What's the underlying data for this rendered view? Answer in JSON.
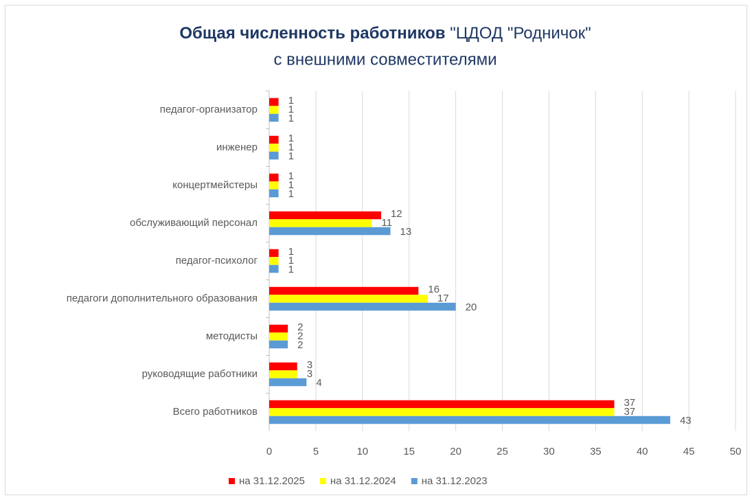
{
  "chart_data": {
    "type": "bar",
    "orientation": "horizontal",
    "title": [
      "Общая численность работников",
      "\"ЦДОД \"Родничок\"",
      "с внешними совместителями"
    ],
    "categories": [
      "педагог-организатор",
      "инженер",
      "концертмейстеры",
      "обслуживающий персонал",
      "педагог-психолог",
      "педагоги дополнительного образования",
      "методисты",
      "руководящие работники",
      "Всего работников"
    ],
    "series": [
      {
        "name": "на 31.12.2025",
        "color": "#ff0000",
        "values": [
          1,
          1,
          1,
          12,
          1,
          16,
          2,
          3,
          37
        ]
      },
      {
        "name": "на 31.12.2024",
        "color": "#ffff00",
        "values": [
          1,
          1,
          1,
          11,
          1,
          17,
          2,
          3,
          37
        ]
      },
      {
        "name": "на 31.12.2023",
        "color": "#5b9bd5",
        "values": [
          1,
          1,
          1,
          13,
          1,
          20,
          2,
          4,
          43
        ]
      }
    ],
    "xlim": [
      0,
      50
    ],
    "xticks": [
      0,
      5,
      10,
      15,
      20,
      25,
      30,
      35,
      40,
      45,
      50
    ],
    "grid": true,
    "legend": "bottom"
  }
}
